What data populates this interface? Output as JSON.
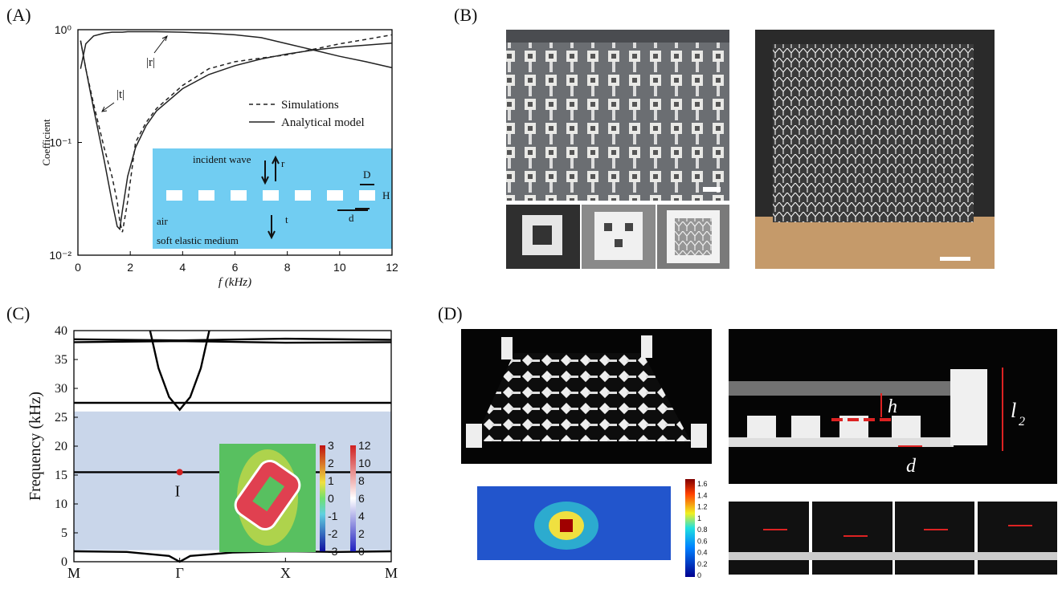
{
  "panels": {
    "a": "(A)",
    "b": "(B)",
    "c": "(C)",
    "d": "(D)"
  },
  "chart_data": [
    {
      "type": "line",
      "xlabel": "f (kHz)",
      "ylabel": "Coefficient",
      "log_y": true,
      "xlim": [
        0,
        12
      ],
      "xticks": [
        0,
        2,
        4,
        6,
        8,
        10,
        12
      ],
      "ylim": [
        0.01,
        1
      ],
      "yticks": [
        {
          "value": 0.01,
          "label": "10⁻²"
        },
        {
          "value": 0.1,
          "label": "10⁻¹"
        },
        {
          "value": 1,
          "label": "10⁰"
        }
      ],
      "x": [
        0.1,
        0.3,
        0.6,
        1.0,
        1.3,
        1.5,
        1.6,
        1.7,
        1.9,
        2.2,
        2.6,
        3,
        4,
        5,
        6,
        7,
        8,
        9,
        10,
        11,
        12
      ],
      "series": [
        {
          "name": "Simulations",
          "color": "#222",
          "dashed": true,
          "values": [
            0.8,
            0.45,
            0.22,
            0.09,
            0.05,
            0.03,
            0.02,
            0.016,
            0.03,
            0.1,
            0.15,
            0.2,
            0.32,
            0.45,
            0.52,
            0.56,
            0.6,
            0.67,
            0.75,
            0.82,
            0.9
          ]
        },
        {
          "name": "Analytical model",
          "color": "#222",
          "dashed": false,
          "values": [
            0.8,
            0.45,
            0.2,
            0.07,
            0.03,
            0.018,
            0.017,
            0.025,
            0.05,
            0.09,
            0.14,
            0.19,
            0.3,
            0.4,
            0.48,
            0.55,
            0.61,
            0.66,
            0.7,
            0.73,
            0.76
          ]
        },
        {
          "color": "#222",
          "dashed": false,
          "values": [
            0.45,
            0.75,
            0.88,
            0.93,
            0.95,
            0.95,
            0.95,
            0.95,
            0.96,
            0.96,
            0.96,
            0.96,
            0.95,
            0.93,
            0.9,
            0.85,
            0.75,
            0.66,
            0.58,
            0.52,
            0.46
          ]
        }
      ],
      "annotations": {
        "r": "|r|",
        "t": "|t|"
      },
      "inset": {
        "incident": "incident wave",
        "r": "r",
        "t": "t",
        "air": "air",
        "medium": "soft elastic medium",
        "D": "D",
        "H": "H",
        "d": "d"
      }
    },
    {
      "type": "line",
      "ylabel": "Frequency (kHz)",
      "xlim": [
        0,
        3
      ],
      "xticks": [
        {
          "value": 0,
          "label": "M"
        },
        {
          "value": 1,
          "label": "Γ"
        },
        {
          "value": 2,
          "label": "X"
        },
        {
          "value": 3,
          "label": "M"
        }
      ],
      "ylim": [
        0,
        40
      ],
      "yticks": [
        0,
        5,
        10,
        15,
        20,
        25,
        30,
        35,
        40
      ],
      "band_gap": [
        2,
        26
      ],
      "series": [
        {
          "color": "#000",
          "x": [
            0,
            0.5,
            0.9,
            1,
            1.1,
            1.5,
            2,
            2.5,
            3
          ],
          "values": [
            1.8,
            1.7,
            1.0,
            0,
            1.0,
            1.6,
            1.8,
            1.7,
            1.8
          ]
        },
        {
          "color": "#000",
          "x": [
            0,
            3
          ],
          "values": [
            15.5,
            15.5
          ]
        },
        {
          "color": "#000",
          "x": [
            0,
            3
          ],
          "values": [
            27.5,
            27.5
          ]
        },
        {
          "color": "#000",
          "x": [
            0,
            1,
            2,
            3
          ],
          "values": [
            38,
            38.2,
            37.9,
            38
          ]
        },
        {
          "color": "#000",
          "x": [
            0,
            1,
            2,
            3
          ],
          "values": [
            38.5,
            38.3,
            38.6,
            38.4
          ]
        },
        {
          "color": "#000",
          "x": [
            0.72,
            0.8,
            0.9,
            1,
            1.1,
            1.2,
            1.28
          ],
          "values": [
            40,
            33.5,
            28.5,
            26.3,
            28.5,
            33.5,
            40
          ]
        }
      ],
      "point": {
        "x": 1,
        "y": 15.5,
        "label": "I"
      },
      "colorbar_left": [
        3,
        2,
        1,
        0,
        -1,
        -2,
        -3
      ],
      "colorbar_right": [
        12,
        10,
        8,
        6,
        4,
        2,
        0
      ]
    }
  ],
  "photo_d": {
    "h": "h",
    "d": "d",
    "l": "l",
    "l_sub": "2",
    "colorbar": [
      1.6,
      1.4,
      1.2,
      1,
      0.8,
      0.6,
      0.4,
      0.2,
      0
    ]
  }
}
